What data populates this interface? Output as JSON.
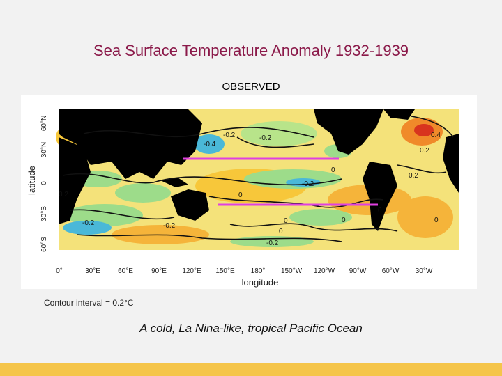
{
  "slide": {
    "title": "Sea Surface Temperature Anomaly 1932-1939",
    "subtitle": "OBSERVED",
    "contour_note": "Contour interval = 0.2°C",
    "caption": "A cold, La Nina-like, tropical Pacific Ocean",
    "accent_color": "#8b1a4a",
    "footer_color": "#f5c54a"
  },
  "map": {
    "ylabel": "latitude",
    "xlabel": "longitude",
    "lat_ticks": [
      "60°N",
      "30°N",
      "0",
      "30°S",
      "60°S"
    ],
    "lon_ticks": [
      "0°",
      "30°E",
      "60°E",
      "90°E",
      "120°E",
      "150°E",
      "180°",
      "150°W",
      "120°W",
      "90°W",
      "60°W",
      "30°W"
    ],
    "contour_labels": [
      "-0.2",
      "-0.4",
      "-0.2",
      "0.4",
      "0.2",
      "0.2",
      "-0.2",
      "0",
      "-0.2",
      "0.2",
      "0",
      "0",
      "0",
      "0",
      "-0.2",
      "-0.2",
      "0",
      "0"
    ],
    "marker_color": "#e040e0",
    "colors": {
      "warm": "#f7d23a",
      "hot": "#f08a2a",
      "cool": "#9ddc8a",
      "cold": "#4ab8d8",
      "land": "#000000"
    }
  }
}
